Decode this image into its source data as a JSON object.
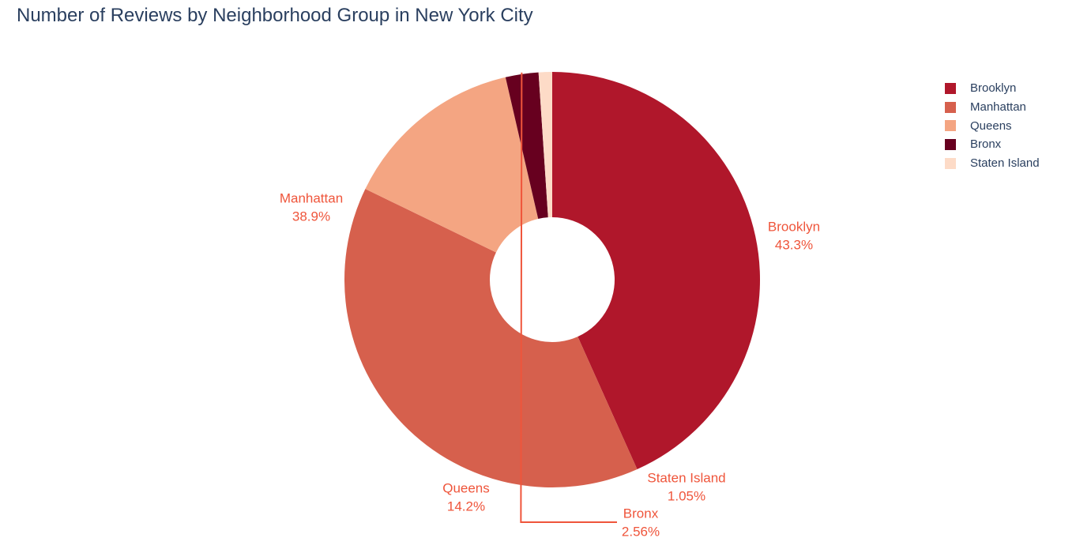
{
  "chart_data": {
    "type": "pie",
    "title": "Number of Reviews by Neighborhood Group in New York City",
    "hole": true,
    "legend_position": "top-right",
    "label_color": "#ef553b",
    "slices": [
      {
        "label": "Brooklyn",
        "percent": 43.3,
        "percent_text": "43.3%",
        "color": "#b0172b"
      },
      {
        "label": "Manhattan",
        "percent": 38.9,
        "percent_text": "38.9%",
        "color": "#d6604d"
      },
      {
        "label": "Queens",
        "percent": 14.2,
        "percent_text": "14.2%",
        "color": "#f4a582"
      },
      {
        "label": "Bronx",
        "percent": 2.56,
        "percent_text": "2.56%",
        "color": "#67001f"
      },
      {
        "label": "Staten Island",
        "percent": 1.05,
        "percent_text": "1.05%",
        "color": "#fddbc7"
      }
    ]
  }
}
